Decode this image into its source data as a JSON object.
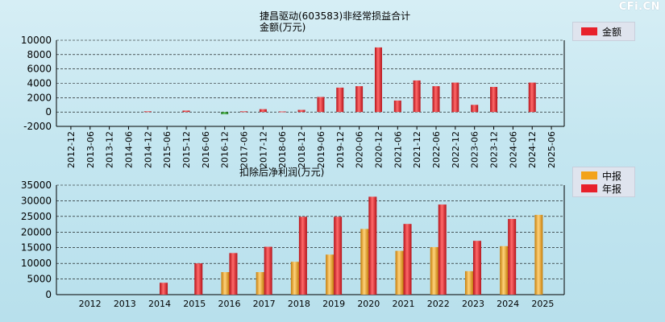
{
  "watermark": "CFi.CN",
  "top_chart_title": "捷昌驱动(603583)非经常损益合计",
  "top_chart_ylabel": "金额(万元)",
  "bottom_chart_title": "扣除后净利润(万元)",
  "colors": {
    "red_bar": "#e8202a",
    "green_bar": "#2e8b2e",
    "orange_bar": "#f3a31b",
    "grid": "#000000",
    "axis": "#000000"
  },
  "chart_data": [
    {
      "type": "bar",
      "title": "捷昌驱动(603583)非经常损益合计",
      "ylabel": "金额(万元)",
      "ylim": [
        -2000,
        10000
      ],
      "yticks": [
        -2000,
        0,
        2000,
        4000,
        6000,
        8000,
        10000
      ],
      "grid": true,
      "legend_position": "top-right",
      "categories": [
        "2012-12",
        "2013-06",
        "2013-12",
        "2014-06",
        "2014-12",
        "2015-06",
        "2015-12",
        "2016-06",
        "2016-12",
        "2017-06",
        "2017-12",
        "2018-06",
        "2018-12",
        "2019-06",
        "2019-12",
        "2020-06",
        "2020-12",
        "2021-06",
        "2021-12",
        "2022-06",
        "2022-12",
        "2023-06",
        "2023-12",
        "2024-06",
        "2024-12",
        "2025-06"
      ],
      "series": [
        {
          "name": "金额",
          "color": "#e8202a",
          "values": [
            0,
            0,
            0,
            0,
            100,
            0,
            200,
            0,
            -300,
            100,
            400,
            80,
            300,
            2100,
            3400,
            3600,
            9000,
            1600,
            4400,
            3600,
            4100,
            1000,
            3500,
            0,
            4100,
            0
          ]
        }
      ]
    },
    {
      "type": "bar",
      "title": "扣除后净利润(万元)",
      "ylim": [
        0,
        35000
      ],
      "yticks": [
        0,
        5000,
        10000,
        15000,
        20000,
        25000,
        30000,
        35000
      ],
      "grid": true,
      "legend_position": "top-right",
      "categories": [
        "2012",
        "2013",
        "2014",
        "2015",
        "2016",
        "2017",
        "2018",
        "2019",
        "2020",
        "2021",
        "2022",
        "2023",
        "2024",
        "2025"
      ],
      "series": [
        {
          "name": "中报",
          "color": "#f3a31b",
          "values": [
            null,
            null,
            null,
            null,
            7200,
            7200,
            10500,
            12800,
            21000,
            14000,
            15200,
            7500,
            15500,
            25500
          ]
        },
        {
          "name": "年报",
          "color": "#e8202a",
          "values": [
            null,
            null,
            3800,
            10000,
            13300,
            15300,
            24900,
            24900,
            31300,
            22600,
            28800,
            17200,
            24200,
            null
          ]
        }
      ]
    }
  ]
}
